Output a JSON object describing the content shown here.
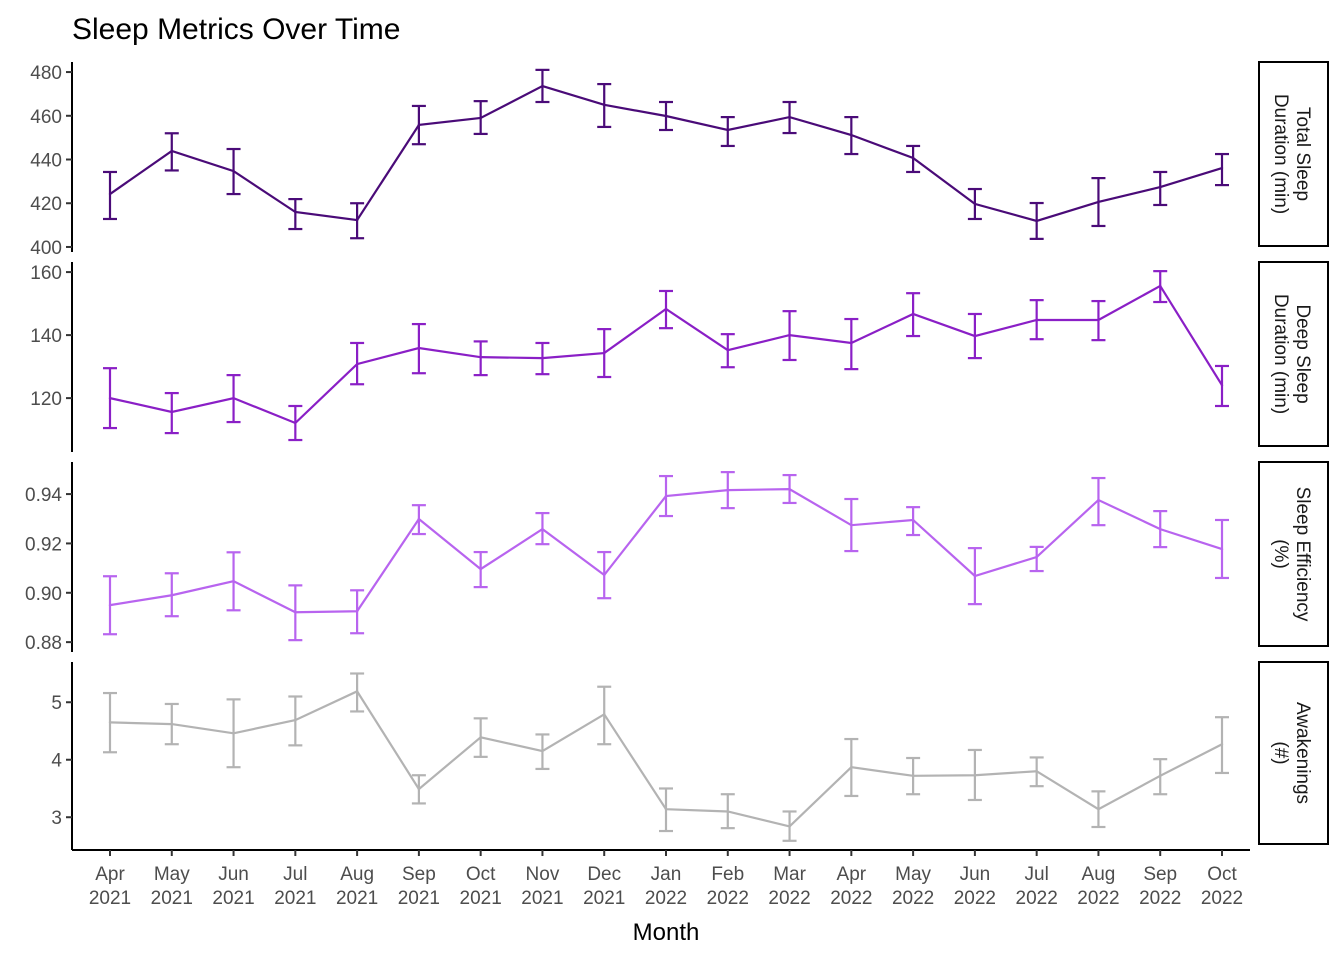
{
  "chart_data": {
    "type": "line",
    "title": "Sleep Metrics Over Time",
    "xlabel": "Month",
    "categories": [
      "Apr 2021",
      "May 2021",
      "Jun 2021",
      "Jul 2021",
      "Aug 2021",
      "Sep 2021",
      "Oct 2021",
      "Nov 2021",
      "Dec 2021",
      "Jan 2022",
      "Feb 2022",
      "Mar 2022",
      "Apr 2022",
      "May 2022",
      "Jun 2022",
      "Jul 2022",
      "Aug 2022",
      "Sep 2022",
      "Oct 2022"
    ],
    "grid": false,
    "facets": [
      {
        "name": "Total Sleep Duration (min)",
        "color": "#4a0b78",
        "ylim": [
          397.7,
          484.6
        ],
        "ticks": [
          400,
          420,
          440,
          460,
          480
        ],
        "tick_labels": [
          "400",
          "420",
          "440",
          "460",
          "480"
        ],
        "values": [
          424.2,
          443.9,
          434.7,
          416,
          412.3,
          455.8,
          459,
          473.6,
          465,
          459.9,
          453.5,
          459.4,
          451.2,
          440.7,
          419.7,
          411.9,
          420.6,
          427.4,
          436.1
        ],
        "lower": [
          412.8,
          435,
          424.2,
          408.2,
          404,
          447,
          451.7,
          466.3,
          454.9,
          453.5,
          446.2,
          452.1,
          442.5,
          434.3,
          412.8,
          403.7,
          409.6,
          419.2,
          428.3
        ],
        "upper": [
          434.3,
          452,
          444.8,
          421.9,
          420,
          464.5,
          466.7,
          481,
          474.5,
          466.3,
          459.4,
          466.3,
          459.4,
          446.2,
          426.5,
          420.1,
          431.5,
          434.3,
          442.5
        ]
      },
      {
        "name": "Deep Sleep Duration (min)",
        "color": "#8a1fc6",
        "ylim": [
          102.9,
          163.2
        ],
        "ticks": [
          120,
          140,
          160
        ],
        "tick_labels": [
          "120",
          "140",
          "160"
        ],
        "values": [
          120,
          115.6,
          120,
          112.1,
          130.8,
          135.9,
          133,
          132.7,
          134.3,
          148.3,
          135.2,
          140,
          137.5,
          146.7,
          139.7,
          144.8,
          144.8,
          155.6,
          124.1
        ],
        "lower": [
          110.5,
          108.9,
          112.4,
          106.7,
          124.4,
          127.9,
          127.3,
          127.6,
          126.7,
          142.2,
          129.8,
          132.1,
          129.2,
          139.7,
          132.7,
          138.7,
          138.4,
          150.5,
          117.5
        ],
        "upper": [
          129.5,
          121.6,
          127.3,
          117.5,
          137.5,
          143.5,
          138,
          137.5,
          141.9,
          154,
          140.3,
          147.6,
          145.1,
          153.3,
          146.7,
          151.1,
          150.8,
          160.3,
          130.2
        ]
      },
      {
        "name": "Sleep Efficiency (%)",
        "color": "#b864ef",
        "ylim": [
          0.876,
          0.953
        ],
        "ticks": [
          0.88,
          0.9,
          0.92,
          0.94
        ],
        "tick_labels": [
          "0.88",
          "0.90",
          "0.92",
          "0.94"
        ],
        "values": [
          0.895,
          0.899,
          0.9047,
          0.8921,
          0.8925,
          0.9299,
          0.9096,
          0.9258,
          0.9072,
          0.9392,
          0.9416,
          0.942,
          0.9274,
          0.9295,
          0.9068,
          0.9145,
          0.9376,
          0.9258,
          0.9177
        ],
        "lower": [
          0.8832,
          0.8905,
          0.8929,
          0.8808,
          0.8836,
          0.9238,
          0.9023,
          0.9197,
          0.8978,
          0.9311,
          0.9343,
          0.9364,
          0.9169,
          0.9234,
          0.8954,
          0.9088,
          0.9274,
          0.9185,
          0.906
        ],
        "upper": [
          0.9067,
          0.9079,
          0.9164,
          0.903,
          0.901,
          0.9355,
          0.9165,
          0.9323,
          0.9165,
          0.9473,
          0.9489,
          0.9477,
          0.938,
          0.9347,
          0.9181,
          0.9186,
          0.9465,
          0.9331,
          0.9295
        ]
      },
      {
        "name": "Awakenings (#)",
        "color": "#b3b3b3",
        "ylim": [
          2.43,
          5.7
        ],
        "ticks": [
          3,
          4,
          5
        ],
        "tick_labels": [
          "3",
          "4",
          "5"
        ],
        "values": [
          4.65,
          4.62,
          4.46,
          4.69,
          5.19,
          3.49,
          4.39,
          4.15,
          4.79,
          3.14,
          3.1,
          2.84,
          3.87,
          3.72,
          3.73,
          3.8,
          3.14,
          3.72,
          4.27
        ],
        "lower": [
          4.13,
          4.27,
          3.87,
          4.25,
          4.84,
          3.24,
          4.05,
          3.84,
          4.27,
          2.76,
          2.81,
          2.59,
          3.37,
          3.4,
          3.3,
          3.54,
          2.83,
          3.4,
          3.77
        ],
        "upper": [
          5.16,
          4.97,
          5.05,
          5.1,
          5.5,
          3.73,
          4.72,
          4.44,
          5.27,
          3.5,
          3.4,
          3.1,
          4.36,
          4.03,
          4.17,
          4.04,
          3.45,
          4.01,
          4.74
        ]
      }
    ]
  }
}
